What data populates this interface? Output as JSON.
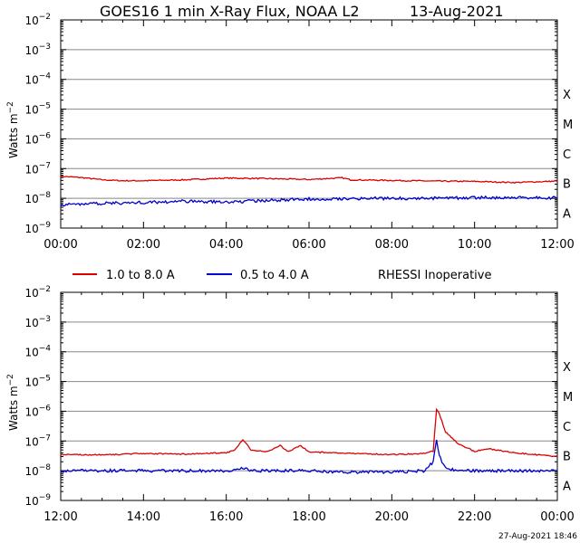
{
  "title": "GOES16 1 min X-Ray Flux, NOAA L2",
  "date": "13-Aug-2021",
  "footer": "27-Aug-2021 18:46",
  "legend": {
    "series1": "1.0 to 8.0 A",
    "series2": "0.5 to 4.0 A",
    "note": "RHESSI Inoperative"
  },
  "colors": {
    "long": "#dd0000",
    "short": "#0000cc",
    "grid": "#888888"
  },
  "chart_data": [
    {
      "type": "line",
      "panel": "top",
      "ylabel": "Watts m",
      "ylabel_sup": "−2",
      "yscale": "log",
      "ylim": [
        1e-09,
        0.01
      ],
      "y_ticks": [
        {
          "base": "10",
          "exp": "−2"
        },
        {
          "base": "10",
          "exp": "−3"
        },
        {
          "base": "10",
          "exp": "−4"
        },
        {
          "base": "10",
          "exp": "−5"
        },
        {
          "base": "10",
          "exp": "−6"
        },
        {
          "base": "10",
          "exp": "−7"
        },
        {
          "base": "10",
          "exp": "−8"
        },
        {
          "base": "10",
          "exp": "−9"
        }
      ],
      "flare_classes": [
        "X",
        "M",
        "C",
        "B",
        "A"
      ],
      "xlim": [
        "00:00",
        "12:00"
      ],
      "x_tick_labels": [
        "00:00",
        "02:00",
        "04:00",
        "06:00",
        "08:00",
        "10:00",
        "12:00"
      ],
      "x_hours": [
        0,
        0.5,
        1,
        1.5,
        2,
        3,
        4,
        5,
        6,
        6.8,
        7,
        8,
        9,
        10,
        11,
        12
      ],
      "series": [
        {
          "name": "1.0 to 8.0 A",
          "color": "#dd0000",
          "values": [
            5.5e-08,
            5e-08,
            4.2e-08,
            3.9e-08,
            3.9e-08,
            4.2e-08,
            4.8e-08,
            4.6e-08,
            4.3e-08,
            4.9e-08,
            4.2e-08,
            4e-08,
            3.8e-08,
            3.7e-08,
            3.4e-08,
            3.8e-08
          ]
        },
        {
          "name": "0.5 to 4.0 A",
          "color": "#0000cc",
          "values": [
            6e-09,
            6.5e-09,
            6.8e-09,
            7e-09,
            7.2e-09,
            8e-09,
            7.5e-09,
            8.5e-09,
            9.5e-09,
            9.8e-09,
            9.9e-09,
            1e-08,
            1e-08,
            1.05e-08,
            1.05e-08,
            1.05e-08
          ]
        }
      ]
    },
    {
      "type": "line",
      "panel": "bottom",
      "ylabel": "Watts m",
      "ylabel_sup": "−2",
      "yscale": "log",
      "ylim": [
        1e-09,
        0.01
      ],
      "y_ticks": [
        {
          "base": "10",
          "exp": "−2"
        },
        {
          "base": "10",
          "exp": "−3"
        },
        {
          "base": "10",
          "exp": "−4"
        },
        {
          "base": "10",
          "exp": "−5"
        },
        {
          "base": "10",
          "exp": "−6"
        },
        {
          "base": "10",
          "exp": "−7"
        },
        {
          "base": "10",
          "exp": "−8"
        },
        {
          "base": "10",
          "exp": "−9"
        }
      ],
      "flare_classes": [
        "X",
        "M",
        "C",
        "B",
        "A"
      ],
      "xlim": [
        "12:00",
        "00:00"
      ],
      "x_tick_labels": [
        "12:00",
        "14:00",
        "16:00",
        "18:00",
        "20:00",
        "22:00",
        "00:00"
      ],
      "x_hours": [
        12,
        13,
        14,
        15,
        16,
        16.2,
        16.4,
        16.6,
        17,
        17.3,
        17.5,
        17.8,
        18,
        19,
        20,
        20.8,
        21.0,
        21.08,
        21.15,
        21.3,
        21.6,
        22,
        22.3,
        23,
        24
      ],
      "series": [
        {
          "name": "1.0 to 8.0 A",
          "color": "#dd0000",
          "values": [
            3.5e-08,
            3.4e-08,
            3.8e-08,
            3.6e-08,
            4e-08,
            4.8e-08,
            1.1e-07,
            5e-08,
            4.4e-08,
            7e-08,
            4.5e-08,
            7e-08,
            4.3e-08,
            3.8e-08,
            3.5e-08,
            3.8e-08,
            4.5e-08,
            1.2e-06,
            8e-07,
            2e-07,
            8e-08,
            4.5e-08,
            5.5e-08,
            4e-08,
            3e-08
          ]
        },
        {
          "name": "0.5 to 4.0 A",
          "color": "#0000cc",
          "values": [
            1e-08,
            1e-08,
            1e-08,
            1e-08,
            1e-08,
            1e-08,
            1.2e-08,
            1e-08,
            1e-08,
            1e-08,
            1e-08,
            1e-08,
            1e-08,
            9e-09,
            9e-09,
            1e-08,
            2e-08,
            1.2e-07,
            3e-08,
            1.2e-08,
            1e-08,
            1e-08,
            1e-08,
            1e-08,
            1e-08
          ]
        }
      ]
    }
  ]
}
